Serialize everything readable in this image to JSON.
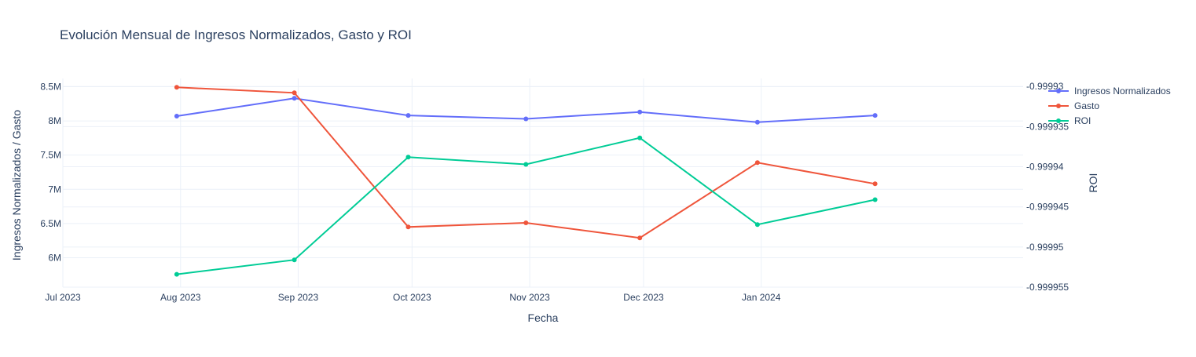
{
  "chart_data": {
    "type": "line",
    "title": "Evolución Mensual de Ingresos Normalizados, Gasto y ROI",
    "xlabel": "Fecha",
    "ylabel": "Ingresos Normalizados / Gasto",
    "y2label": "ROI",
    "x": [
      "2023-07-31",
      "2023-08-31",
      "2023-09-30",
      "2023-10-31",
      "2023-11-30",
      "2023-12-31",
      "2024-01-31"
    ],
    "x_range": [
      "2023-07-01",
      "2024-03-10"
    ],
    "x_ticks": [
      {
        "date": "2023-07-01",
        "label": "Jul 2023"
      },
      {
        "date": "2023-08-01",
        "label": "Aug 2023"
      },
      {
        "date": "2023-09-01",
        "label": "Sep 2023"
      },
      {
        "date": "2023-10-01",
        "label": "Oct 2023"
      },
      {
        "date": "2023-11-01",
        "label": "Nov 2023"
      },
      {
        "date": "2023-12-01",
        "label": "Dec 2023"
      },
      {
        "date": "2024-01-01",
        "label": "Jan 2024"
      }
    ],
    "ylim": [
      5570000,
      8620000
    ],
    "y_ticks": [
      {
        "value": 6000000,
        "label": "6M"
      },
      {
        "value": 6500000,
        "label": "6.5M"
      },
      {
        "value": 7000000,
        "label": "7M"
      },
      {
        "value": 7500000,
        "label": "7.5M"
      },
      {
        "value": 8000000,
        "label": "8M"
      },
      {
        "value": 8500000,
        "label": "8.5M"
      }
    ],
    "y2lim": [
      -0.999955,
      -0.999929
    ],
    "y2_ticks": [
      {
        "value": -0.999955,
        "label": "-0.999955"
      },
      {
        "value": -0.99995,
        "label": "-0.99995"
      },
      {
        "value": -0.999945,
        "label": "-0.999945"
      },
      {
        "value": -0.99994,
        "label": "-0.99994"
      },
      {
        "value": -0.999935,
        "label": "-0.999935"
      },
      {
        "value": -0.99993,
        "label": "-0.99993"
      }
    ],
    "series": [
      {
        "name": "Ingresos Normalizados",
        "axis": "y",
        "color": "#636efa",
        "values": [
          8070000,
          8330000,
          8080000,
          8030000,
          8130000,
          7980000,
          8080000
        ]
      },
      {
        "name": "Gasto",
        "axis": "y",
        "color": "#ef553b",
        "values": [
          8490000,
          8410000,
          6450000,
          6510000,
          6290000,
          7390000,
          7080000
        ]
      },
      {
        "name": "ROI",
        "axis": "y2",
        "color": "#00cc96",
        "values": [
          -0.9999534,
          -0.9999516,
          -0.9999388,
          -0.9999397,
          -0.9999364,
          -0.9999472,
          -0.9999441
        ]
      }
    ],
    "grid": true,
    "legend_position": "top-right",
    "legend": [
      "Ingresos Normalizados",
      "Gasto",
      "ROI"
    ]
  }
}
